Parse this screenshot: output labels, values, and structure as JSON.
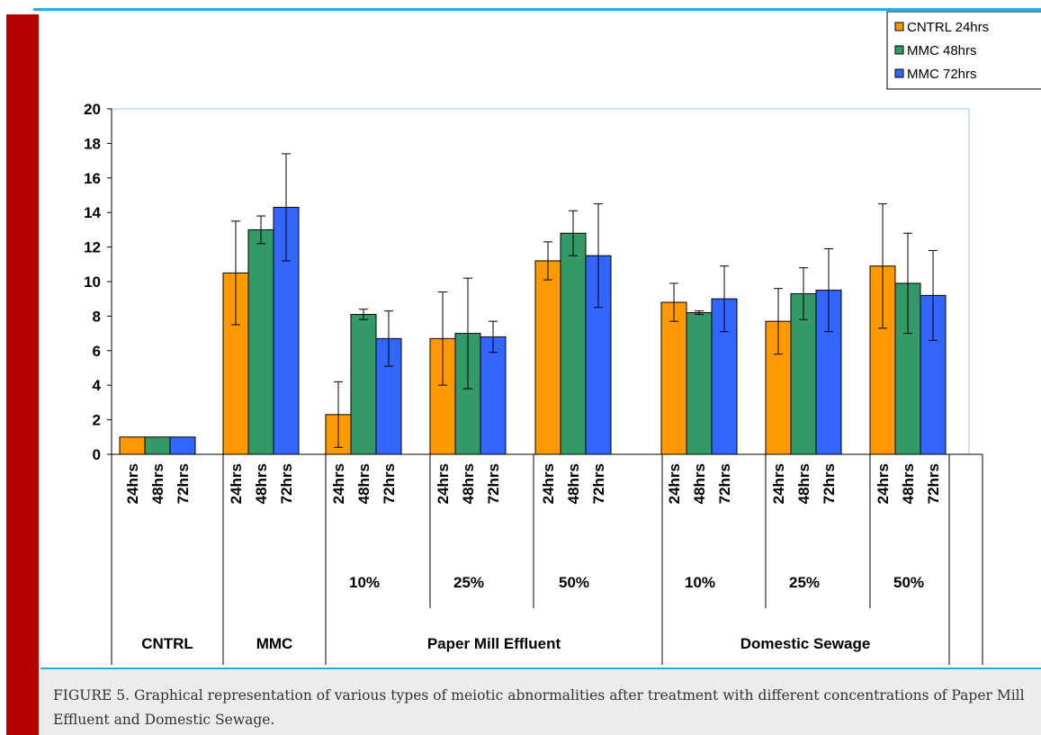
{
  "chart_data": {
    "type": "bar",
    "title": "",
    "xlabel": "",
    "ylabel": "",
    "ylim": [
      0,
      20
    ],
    "y_ticks": [
      "0",
      "2",
      "4",
      "6",
      "8",
      "10",
      "12",
      "14",
      "16",
      "18",
      "20"
    ],
    "grid": false,
    "legend_position": "top-right",
    "error_bars": true,
    "series": [
      {
        "name": "CNTRL 24hrs",
        "color": "#ff9900"
      },
      {
        "name": "MMC 48hrs",
        "color": "#339966"
      },
      {
        "name": "MMC 72hrs",
        "color": "#3366ff"
      }
    ],
    "bar_labels": [
      "24hrs",
      "48hrs",
      "72hrs"
    ],
    "groups": [
      {
        "treatment": "CNTRL",
        "concentration": "",
        "values": [
          1.0,
          1.0,
          1.0
        ],
        "errors": [
          0.0,
          0.0,
          0.0
        ]
      },
      {
        "treatment": "MMC",
        "concentration": "",
        "values": [
          10.5,
          13.0,
          14.3
        ],
        "errors": [
          3.0,
          0.8,
          3.1
        ]
      },
      {
        "treatment": "Paper Mill Effluent",
        "concentration": "10%",
        "values": [
          2.3,
          8.1,
          6.7
        ],
        "errors": [
          1.9,
          0.3,
          1.6
        ]
      },
      {
        "treatment": "Paper Mill Effluent",
        "concentration": "25%",
        "values": [
          6.7,
          7.0,
          6.8
        ],
        "errors": [
          2.7,
          3.2,
          0.9
        ]
      },
      {
        "treatment": "Paper Mill Effluent",
        "concentration": "50%",
        "values": [
          11.2,
          12.8,
          11.5
        ],
        "errors": [
          1.1,
          1.3,
          3.0
        ]
      },
      {
        "treatment": "Domestic Sewage",
        "concentration": "10%",
        "values": [
          8.8,
          8.2,
          9.0
        ],
        "errors": [
          1.1,
          0.1,
          1.9
        ]
      },
      {
        "treatment": "Domestic Sewage",
        "concentration": "25%",
        "values": [
          7.7,
          9.3,
          9.5
        ],
        "errors": [
          1.9,
          1.5,
          2.4
        ]
      },
      {
        "treatment": "Domestic Sewage",
        "concentration": "50%",
        "values": [
          10.9,
          9.9,
          9.2
        ],
        "errors": [
          3.6,
          2.9,
          2.6
        ]
      }
    ],
    "treatment_labels": [
      "CNTRL",
      "MMC",
      "Paper Mill Effluent",
      "Domestic Sewage"
    ]
  },
  "caption": "FIGURE 5. Graphical representation of various types of meiotic abnormalities after treatment with different concentrations of Paper Mill Effluent and Domestic Sewage.",
  "colors": {
    "accent_bar": "#b60000",
    "rule": "#1fb0e8",
    "caption_bg": "#ececec"
  }
}
